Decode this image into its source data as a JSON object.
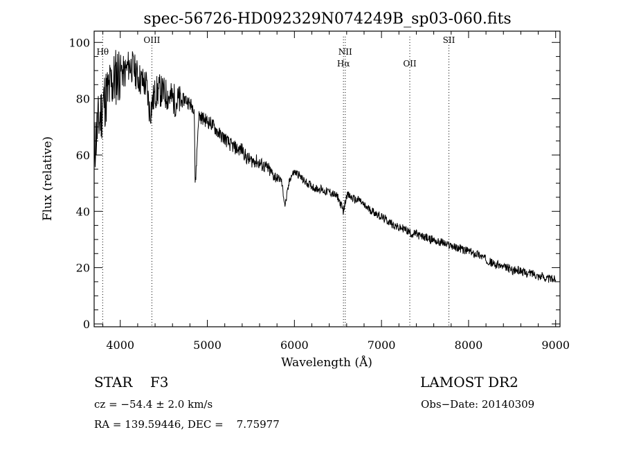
{
  "chart_data": {
    "type": "line",
    "title": "spec-56726-HD092329N074249B_sp03-060.fits",
    "xlabel": "Wavelength (Å)",
    "ylabel": "Flux (relative)",
    "xlim": [
      3700,
      9050
    ],
    "ylim": [
      -1,
      104
    ],
    "x_ticks": [
      "4000",
      "5000",
      "6000",
      "7000",
      "8000",
      "9000"
    ],
    "y_ticks": [
      "0",
      "20",
      "40",
      "60",
      "80",
      "100"
    ],
    "series": [
      {
        "x": [
          3700,
          3740,
          3780,
          3820,
          3860,
          3900,
          3950,
          4000,
          4050,
          4100,
          4150,
          4200,
          4250,
          4300,
          4340,
          4400,
          4450,
          4500,
          4550,
          4600,
          4650,
          4700,
          4750,
          4800,
          4850,
          4861,
          4900,
          4950,
          5000,
          5050,
          5100,
          5150,
          5200,
          5250,
          5300,
          5350,
          5400,
          5450,
          5500,
          5550,
          5600,
          5650,
          5700,
          5750,
          5800,
          5850,
          5893,
          5950,
          6000,
          6050,
          6100,
          6150,
          6200,
          6250,
          6300,
          6350,
          6400,
          6450,
          6500,
          6563,
          6600,
          6650,
          6700,
          6750,
          6800,
          6850,
          6900,
          6950,
          7000,
          7050,
          7100,
          7150,
          7200,
          7250,
          7300,
          7350,
          7400,
          7450,
          7500,
          7550,
          7600,
          7650,
          7700,
          7750,
          7800,
          7850,
          7900,
          7950,
          8000,
          8050,
          8100,
          8150,
          8200,
          8250,
          8300,
          8350,
          8400,
          8450,
          8500,
          8550,
          8600,
          8650,
          8700,
          8750,
          8800,
          8850,
          8900,
          8950,
          9000
        ],
        "y": [
          62,
          70,
          75,
          80,
          82,
          85,
          88,
          90,
          89,
          92,
          91,
          88,
          86,
          85,
          75,
          82,
          83,
          82,
          81,
          80,
          79,
          79,
          80,
          78,
          77,
          48,
          74,
          73,
          72,
          71,
          69,
          67,
          66,
          64,
          63,
          62,
          62,
          59,
          58,
          58,
          57,
          56,
          55,
          53,
          52,
          51,
          42,
          52,
          54,
          53,
          51,
          50,
          49,
          48,
          48,
          47,
          47,
          46,
          45,
          40,
          46,
          45,
          44,
          44,
          42,
          41,
          40,
          39,
          38,
          37,
          36,
          35,
          34,
          34,
          33,
          32,
          32,
          31,
          31,
          30,
          30,
          29,
          29,
          28,
          28,
          27,
          27,
          26,
          26,
          25,
          25,
          24,
          23,
          22,
          21,
          21,
          20,
          20,
          19,
          19,
          19,
          18,
          18,
          18,
          17,
          17,
          16,
          16,
          16
        ]
      }
    ],
    "annotations": [
      {
        "label": "Hθ",
        "x": 3798
      },
      {
        "label": "OIII",
        "x": 4363
      },
      {
        "label": "NII",
        "x": 6584
      },
      {
        "label": "Hα",
        "x": 6563
      },
      {
        "label": "OII",
        "x": 7325
      },
      {
        "label": "SII",
        "x": 7774
      }
    ],
    "grid": false
  },
  "info": {
    "class_line": "STAR    F3",
    "cz": "cz = −54.4 ± 2.0 km/s",
    "radec": "RA = 139.59446, DEC =    7.75977",
    "release": "LAMOST DR2",
    "obs_date": "Obs−Date: 20140309"
  }
}
